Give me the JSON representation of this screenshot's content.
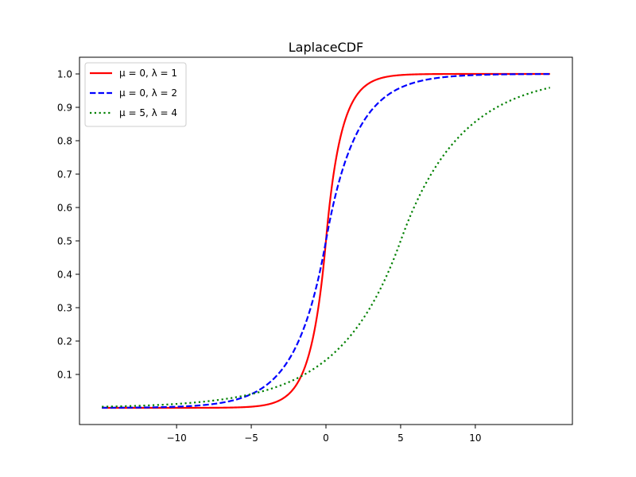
{
  "chart_data": {
    "type": "line",
    "title": "LaplaceCDF",
    "xlabel": "",
    "ylabel": "",
    "xlim": [
      -16.5,
      16.5
    ],
    "ylim": [
      -0.05,
      1.05
    ],
    "x_ticks": [
      -10,
      -5,
      0,
      5,
      10
    ],
    "x_tick_labels": [
      "−10",
      "−5",
      "0",
      "5",
      "10"
    ],
    "y_ticks": [
      0.1,
      0.2,
      0.3,
      0.4,
      0.5,
      0.6,
      0.7,
      0.8,
      0.9,
      1.0
    ],
    "y_tick_labels": [
      "0.1",
      "0.2",
      "0.3",
      "0.4",
      "0.5",
      "0.6",
      "0.7",
      "0.8",
      "0.9",
      "1.0"
    ],
    "grid": false,
    "legend_position": "top-left",
    "x_range": [
      -15,
      15
    ],
    "series": [
      {
        "name": "μ = 0, λ = 1",
        "mu": 0,
        "lambda": 1,
        "color": "#ff0000",
        "style": "solid",
        "x": [
          -15,
          -10,
          -5,
          -4,
          -3,
          -2,
          -1,
          0,
          1,
          2,
          3,
          4,
          5,
          10,
          15
        ],
        "y": [
          0.0,
          0.0,
          0.003,
          0.009,
          0.025,
          0.068,
          0.184,
          0.5,
          0.816,
          0.932,
          0.975,
          0.991,
          0.997,
          1.0,
          1.0
        ]
      },
      {
        "name": "μ = 0, λ = 2",
        "mu": 0,
        "lambda": 2,
        "color": "#0000ff",
        "style": "dashed",
        "x": [
          -15,
          -10,
          -5,
          -4,
          -3,
          -2,
          -1,
          0,
          1,
          2,
          3,
          4,
          5,
          10,
          15
        ],
        "y": [
          0.0003,
          0.003,
          0.041,
          0.068,
          0.112,
          0.184,
          0.303,
          0.5,
          0.697,
          0.816,
          0.888,
          0.932,
          0.959,
          0.997,
          1.0
        ]
      },
      {
        "name": "μ = 5, λ = 4",
        "mu": 5,
        "lambda": 4,
        "color": "#008000",
        "style": "dotted",
        "x": [
          -15,
          -10,
          -5,
          -2,
          0,
          2,
          4,
          5,
          6,
          8,
          10,
          12,
          15
        ],
        "y": [
          0.003,
          0.012,
          0.041,
          0.087,
          0.143,
          0.236,
          0.389,
          0.5,
          0.611,
          0.764,
          0.857,
          0.913,
          0.959
        ]
      }
    ]
  }
}
